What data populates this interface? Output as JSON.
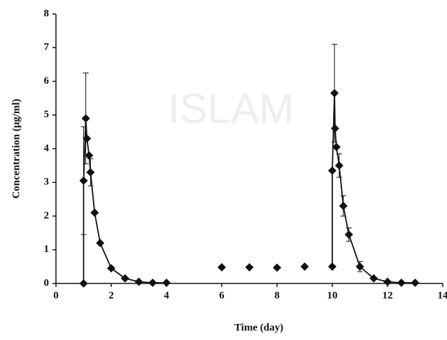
{
  "chart_data": {
    "type": "line",
    "watermark": "ISLAM",
    "x_label": "Time (day)",
    "y_label": "Concentration (μg/ml)",
    "xlim": [
      0,
      14
    ],
    "xticks": [
      0,
      2,
      4,
      6,
      8,
      10,
      12,
      14
    ],
    "ylim": [
      0,
      8
    ],
    "yticks": [
      0,
      1,
      2,
      3,
      4,
      5,
      6,
      7,
      8
    ],
    "series": [
      {
        "color": "#111111",
        "line": true,
        "x": [
          1,
          1,
          1.08,
          1.12,
          1.2,
          1.25,
          1.4,
          1.6,
          2,
          2.5,
          3,
          3.5,
          4
        ],
        "values": [
          0,
          3.05,
          4.9,
          4.3,
          3.8,
          3.3,
          2.1,
          1.2,
          0.45,
          0.15,
          0.05,
          0.02,
          0.02
        ],
        "errors": [
          null,
          1.6,
          1.35,
          null,
          null,
          0.4,
          null,
          null,
          null,
          null,
          null,
          null,
          null
        ]
      },
      {
        "color": "#111111",
        "line": false,
        "x": [
          6,
          7,
          8,
          9
        ],
        "values": [
          0.48,
          0.48,
          0.47,
          0.5
        ],
        "errors": [
          null,
          null,
          null,
          null
        ]
      },
      {
        "color": "#111111",
        "line": true,
        "x": [
          10,
          10,
          10.08,
          10.1,
          10.15,
          10.25,
          10.4,
          10.6,
          11,
          11.5,
          12,
          12.5,
          13
        ],
        "values": [
          0.5,
          3.35,
          5.65,
          4.6,
          4.05,
          3.5,
          2.3,
          1.45,
          0.5,
          0.15,
          0.05,
          0.02,
          0.02
        ],
        "errors": [
          null,
          null,
          1.45,
          null,
          null,
          0.35,
          0.3,
          0.2,
          0.15,
          null,
          null,
          null,
          null
        ]
      }
    ]
  }
}
